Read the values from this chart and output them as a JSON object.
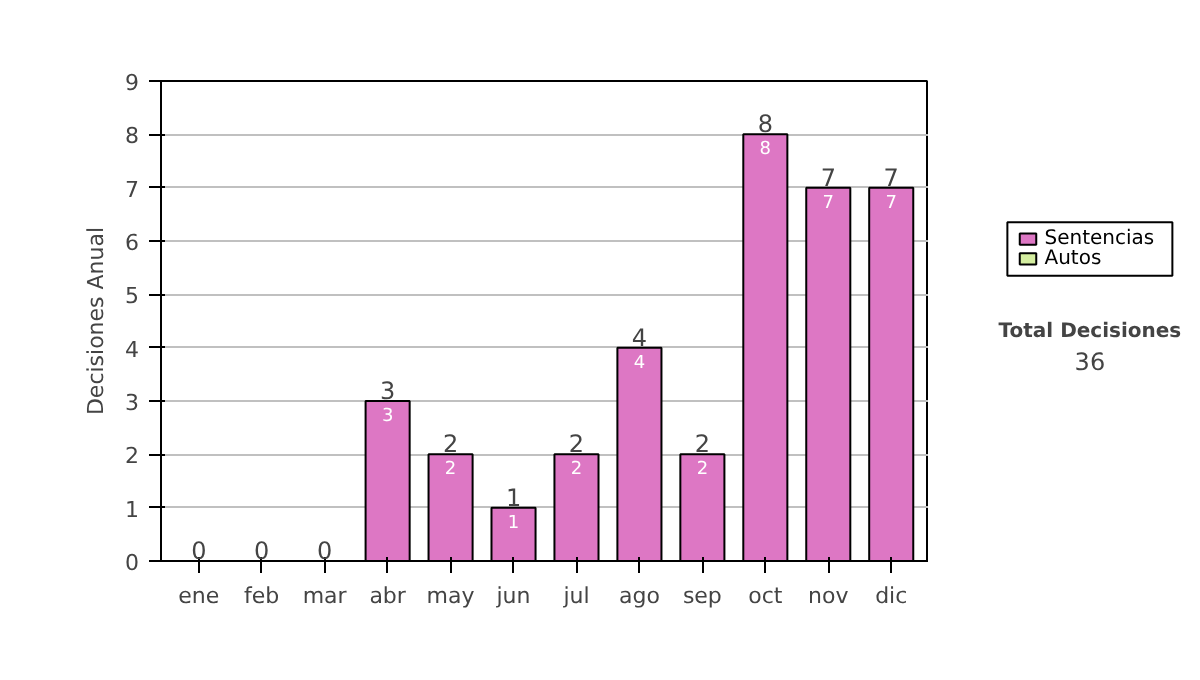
{
  "chart_data": {
    "type": "bar",
    "stacked": true,
    "ylabel": "Decisiones Anual",
    "categories": [
      "ene",
      "feb",
      "mar",
      "abr",
      "may",
      "jun",
      "jul",
      "ago",
      "sep",
      "oct",
      "nov",
      "dic"
    ],
    "series": [
      {
        "name": "Sentencias",
        "color": "#dd77c4",
        "values": [
          0,
          0,
          0,
          3,
          2,
          1,
          2,
          4,
          2,
          8,
          7,
          7
        ],
        "value_labels": [
          null,
          null,
          null,
          "3",
          "2",
          "1",
          "2",
          "4",
          "2",
          "8",
          "7",
          "7"
        ]
      },
      {
        "name": "Autos",
        "color": "#d4eea0",
        "values": [
          0,
          0,
          0,
          0,
          0,
          0,
          0,
          0,
          0,
          0,
          0,
          0
        ]
      }
    ],
    "totals": [
      "0",
      "0",
      "0",
      "3",
      "2",
      "1",
      "2",
      "4",
      "2",
      "8",
      "7",
      "7"
    ],
    "ylim": [
      0,
      9
    ],
    "yticks": [
      0,
      1,
      2,
      3,
      4,
      5,
      6,
      7,
      8,
      9
    ],
    "grid": "y",
    "legend": "right",
    "annotations": [
      "Total Decisiones",
      "36"
    ]
  }
}
